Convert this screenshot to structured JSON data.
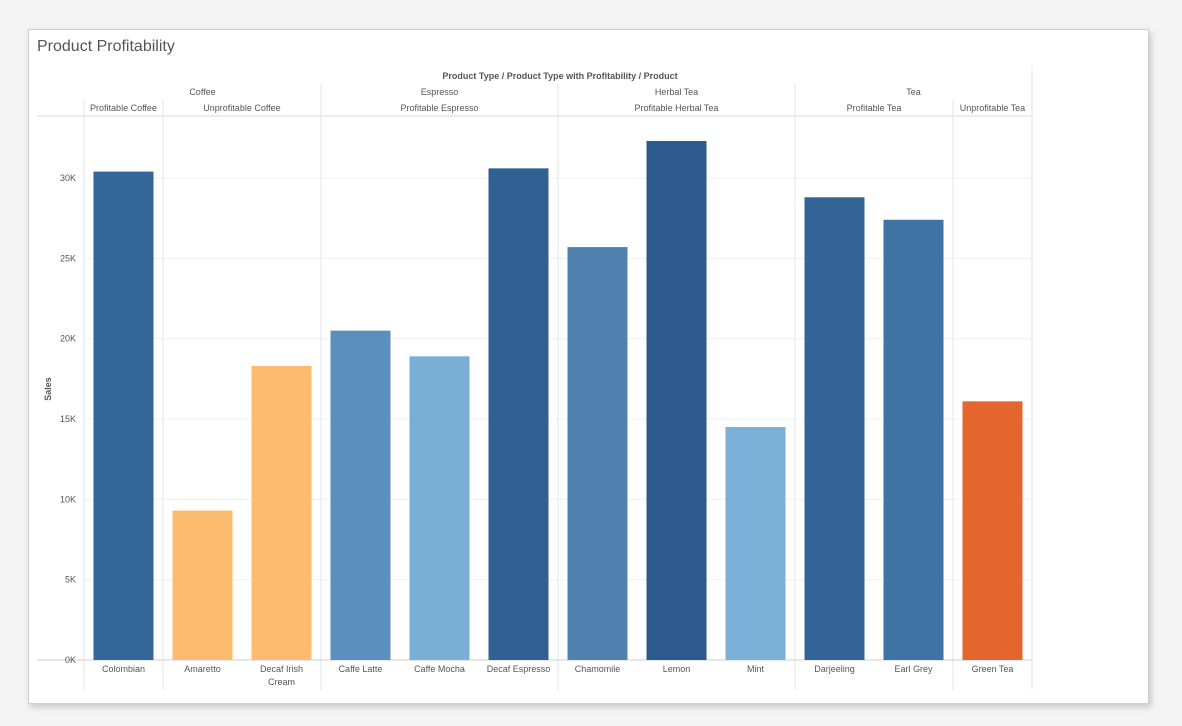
{
  "title": "Product Profitability",
  "chart_data": {
    "type": "bar",
    "title": "Product Profitability",
    "header_title": "Product Type / Product Type with Profitability / Product",
    "ylabel": "Sales",
    "xlabel": "",
    "ylim": [
      0,
      34000
    ],
    "yticks": [
      0,
      5000,
      10000,
      15000,
      20000,
      25000,
      30000
    ],
    "ytick_labels": [
      "0K",
      "5K",
      "10K",
      "15K",
      "20K",
      "25K",
      "30K"
    ],
    "product_types": [
      {
        "label": "Coffee",
        "count": 3
      },
      {
        "label": "Espresso",
        "count": 3
      },
      {
        "label": "Herbal Tea",
        "count": 3
      },
      {
        "label": "Tea",
        "count": 3
      }
    ],
    "profitability_groups": [
      {
        "label": "Profitable Coffee",
        "count": 1
      },
      {
        "label": "Unprofitable Coffee",
        "count": 2
      },
      {
        "label": "Profitable Espresso",
        "count": 3
      },
      {
        "label": "Profitable Herbal Tea",
        "count": 3
      },
      {
        "label": "Profitable Tea",
        "count": 2
      },
      {
        "label": "Unprofitable Tea",
        "count": 1
      }
    ],
    "categories": [
      "Colombian",
      "Amaretto",
      "Decaf Irish Cream",
      "Caffe Latte",
      "Caffe Mocha",
      "Decaf Espresso",
      "Chamomile",
      "Lemon",
      "Mint",
      "Darjeeling",
      "Earl Grey",
      "Green Tea"
    ],
    "category_lines": [
      [
        "Colombian"
      ],
      [
        "Amaretto"
      ],
      [
        "Decaf Irish",
        "Cream"
      ],
      [
        "Caffe Latte"
      ],
      [
        "Caffe Mocha"
      ],
      [
        "Decaf Espresso"
      ],
      [
        "Chamomile"
      ],
      [
        "Lemon"
      ],
      [
        "Mint"
      ],
      [
        "Darjeeling"
      ],
      [
        "Earl Grey"
      ],
      [
        "Green Tea"
      ]
    ],
    "values": [
      30400,
      9300,
      18300,
      20500,
      18900,
      30600,
      25700,
      32300,
      14500,
      28800,
      27400,
      16100
    ],
    "colors": [
      "#336699",
      "#fdbb6f",
      "#fdbb6f",
      "#5b8fbd",
      "#79aed6",
      "#2f6193",
      "#5082b0",
      "#2c5a8c",
      "#7ab0d8",
      "#336496",
      "#3e73a4",
      "#e5652e"
    ]
  }
}
